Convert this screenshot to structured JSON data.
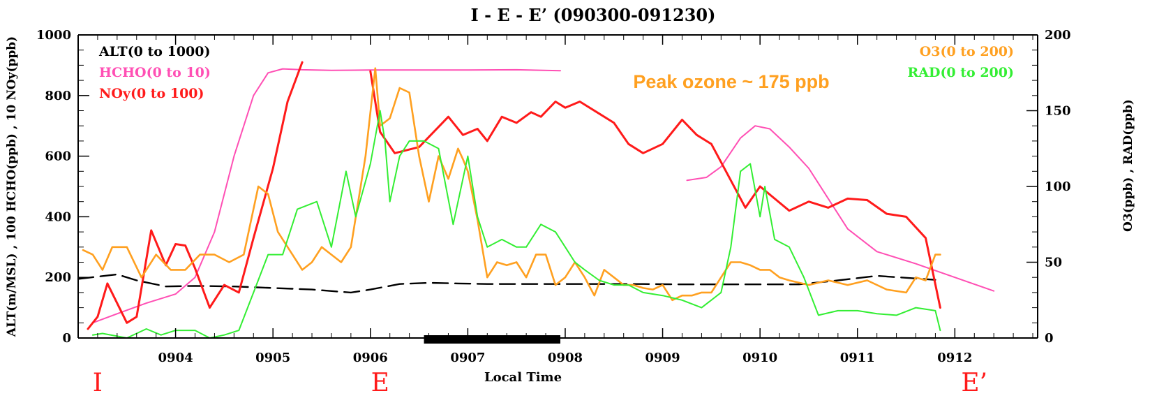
{
  "chart_data": {
    "type": "line",
    "title": "I - E - E’ (090300-091230)",
    "xlabel": "Local Time",
    "ylabel_left": "ALT(m/MSL) , 100 HCHO(ppb) , 10 NOy(ppb)",
    "ylabel_right": "O3(ppb) , RAD(ppb)",
    "xlim": [
      3.0,
      12.85
    ],
    "ylim_left": [
      0,
      1000
    ],
    "ylim_right": [
      0,
      200
    ],
    "x_ticks": [
      4,
      5,
      6,
      7,
      8,
      9,
      10,
      11,
      12
    ],
    "x_tick_labels": [
      "0904",
      "0905",
      "0906",
      "0907",
      "0908",
      "0909",
      "0910",
      "0911",
      "0912"
    ],
    "y_ticks_left": [
      0,
      200,
      400,
      600,
      800,
      1000
    ],
    "y_tick_labels_left": [
      "0",
      "200",
      "400",
      "600",
      "800",
      "1000"
    ],
    "y_ticks_right": [
      0,
      50,
      100,
      150,
      200
    ],
    "y_tick_labels_right": [
      "0",
      "50",
      "100",
      "150",
      "200"
    ],
    "grid": false,
    "legend_left": [
      {
        "label": "ALT(0 to 1000)",
        "color": "#000000"
      },
      {
        "label": "HCHO(0 to 10)",
        "color": "#ff4fb4"
      },
      {
        "label": "NOy(0 to 100)",
        "color": "#ff1a1a"
      }
    ],
    "legend_right": [
      {
        "label": "O3(0 to 200)",
        "color": "#ffa020"
      },
      {
        "label": "RAD(0 to 200)",
        "color": "#33ee33"
      }
    ],
    "annotation": {
      "text": "Peak ozone ~ 175 ppb",
      "color": "#ffa020"
    },
    "bar_segment": {
      "x_start": 6.55,
      "x_end": 7.95
    },
    "point_markers": [
      {
        "label": "I",
        "x": 3.2,
        "color": "#ff1a1a"
      },
      {
        "label": "E",
        "x": 6.1,
        "color": "#ff1a1a"
      },
      {
        "label": "E’",
        "x": 12.2,
        "color": "#ff1a1a"
      }
    ],
    "series": [
      {
        "name": "ALT",
        "axis": "left",
        "color": "#000000",
        "dashed": true,
        "x": [
          3.0,
          3.4,
          3.6,
          3.9,
          4.2,
          4.6,
          5.0,
          5.4,
          5.8,
          6.0,
          6.3,
          6.6,
          6.9,
          7.2,
          7.6,
          8.0,
          8.4,
          8.8,
          9.2,
          9.6,
          10.0,
          10.4,
          10.8,
          11.2,
          11.8
        ],
        "y": [
          195,
          210,
          190,
          170,
          172,
          170,
          165,
          160,
          150,
          160,
          178,
          182,
          180,
          178,
          178,
          178,
          178,
          178,
          177,
          177,
          177,
          177,
          190,
          205,
          192
        ]
      },
      {
        "name": "HCHO",
        "axis": "left",
        "color": "#ff4fb4",
        "dashed": false,
        "x": [
          3.15,
          3.4,
          3.7,
          4.0,
          4.2,
          4.4,
          4.6,
          4.8,
          4.95,
          5.1,
          5.3,
          5.6,
          6.0,
          6.5,
          7.0,
          7.5,
          7.95
        ],
        "y": [
          50,
          80,
          115,
          145,
          200,
          350,
          600,
          800,
          875,
          888,
          885,
          883,
          884,
          884,
          884,
          885,
          882
        ]
      },
      {
        "name": "HCHO-2",
        "axis": "left",
        "color": "#ff4fb4",
        "dashed": false,
        "x": [
          9.25,
          9.45,
          9.6,
          9.8,
          9.95,
          10.1,
          10.3,
          10.5,
          10.7,
          10.9,
          11.2,
          11.6,
          12.0,
          12.4
        ],
        "y": [
          520,
          530,
          565,
          660,
          700,
          690,
          630,
          560,
          460,
          360,
          285,
          245,
          200,
          155
        ]
      },
      {
        "name": "NOy",
        "axis": "left",
        "color": "#ff1a1a",
        "dashed": false,
        "x": [
          3.1,
          3.2,
          3.3,
          3.5,
          3.6,
          3.75,
          3.9,
          4.0,
          4.1,
          4.2,
          4.35,
          4.5,
          4.65,
          4.8,
          5.0,
          5.15,
          5.3
        ],
        "y": [
          30,
          70,
          180,
          50,
          70,
          355,
          240,
          310,
          305,
          230,
          100,
          175,
          150,
          330,
          560,
          780,
          910
        ]
      },
      {
        "name": "NOy-2",
        "axis": "left",
        "color": "#ff1a1a",
        "dashed": false,
        "x": [
          6.0,
          6.1,
          6.25,
          6.5,
          6.8,
          6.95,
          7.1,
          7.2,
          7.35,
          7.5,
          7.65,
          7.75,
          7.9,
          8.0,
          8.15,
          8.35,
          8.5,
          8.65,
          8.8,
          9.0,
          9.2,
          9.35,
          9.5,
          9.7,
          9.85,
          10.0,
          10.15,
          10.3,
          10.5,
          10.7,
          10.9,
          11.1,
          11.3,
          11.5,
          11.7,
          11.85
        ],
        "y": [
          880,
          680,
          610,
          630,
          730,
          670,
          690,
          650,
          730,
          710,
          745,
          730,
          780,
          760,
          780,
          740,
          710,
          640,
          610,
          640,
          720,
          670,
          640,
          520,
          430,
          500,
          460,
          420,
          450,
          430,
          460,
          455,
          410,
          400,
          330,
          100
        ]
      },
      {
        "name": "O3",
        "axis": "right",
        "color": "#ffa020",
        "dashed": false,
        "x": [
          3.05,
          3.15,
          3.25,
          3.35,
          3.5,
          3.65,
          3.8,
          3.95,
          4.1,
          4.25,
          4.4,
          4.55,
          4.7,
          4.85,
          4.95,
          5.05,
          5.2,
          5.3,
          5.4,
          5.5,
          5.6,
          5.7,
          5.8,
          5.95,
          6.05,
          6.1,
          6.2,
          6.3,
          6.4,
          6.5,
          6.6,
          6.7,
          6.8,
          6.9,
          6.95,
          7.0,
          7.1,
          7.2,
          7.3,
          7.4,
          7.5,
          7.6,
          7.7,
          7.8,
          7.9,
          8.0,
          8.1,
          8.2,
          8.3,
          8.4,
          8.5,
          8.6,
          8.7,
          8.8,
          8.9,
          9.0,
          9.1,
          9.2,
          9.3,
          9.4,
          9.5,
          9.6,
          9.7,
          9.8,
          9.9,
          10.0,
          10.1,
          10.2,
          10.3,
          10.5,
          10.7,
          10.9,
          11.1,
          11.3,
          11.5,
          11.6,
          11.7,
          11.8,
          11.85
        ],
        "y": [
          58,
          55,
          45,
          60,
          60,
          40,
          55,
          45,
          45,
          55,
          55,
          50,
          55,
          100,
          95,
          70,
          55,
          45,
          50,
          60,
          55,
          50,
          60,
          120,
          178,
          140,
          145,
          165,
          162,
          120,
          90,
          120,
          105,
          125,
          118,
          110,
          78,
          40,
          50,
          48,
          50,
          40,
          55,
          55,
          35,
          40,
          50,
          40,
          28,
          45,
          40,
          35,
          35,
          33,
          32,
          35,
          25,
          28,
          28,
          30,
          30,
          40,
          50,
          50,
          48,
          45,
          45,
          40,
          38,
          35,
          38,
          35,
          38,
          32,
          30,
          40,
          38,
          55,
          55
        ]
      },
      {
        "name": "RAD",
        "axis": "right",
        "color": "#33ee33",
        "dashed": false,
        "x": [
          3.15,
          3.25,
          3.5,
          3.7,
          3.85,
          4.0,
          4.2,
          4.35,
          4.5,
          4.65,
          4.8,
          4.95,
          5.1,
          5.25,
          5.45,
          5.6,
          5.75,
          5.85,
          6.0,
          6.1,
          6.15,
          6.2,
          6.3,
          6.4,
          6.55,
          6.7,
          6.85,
          7.0,
          7.1,
          7.2,
          7.35,
          7.5,
          7.6,
          7.75,
          7.9,
          8.0,
          8.1,
          8.2,
          8.35,
          8.5,
          8.65,
          8.8,
          9.0,
          9.2,
          9.4,
          9.6,
          9.7,
          9.8,
          9.9,
          10.0,
          10.05,
          10.15,
          10.3,
          10.45,
          10.6,
          10.8,
          11.0,
          11.2,
          11.4,
          11.6,
          11.8,
          11.85
        ],
        "y": [
          2,
          3,
          0,
          6,
          2,
          5,
          5,
          0,
          2,
          5,
          30,
          55,
          55,
          85,
          90,
          60,
          110,
          80,
          115,
          150,
          130,
          90,
          120,
          130,
          130,
          125,
          75,
          120,
          80,
          60,
          65,
          60,
          60,
          75,
          70,
          60,
          50,
          45,
          38,
          35,
          35,
          30,
          28,
          25,
          20,
          30,
          60,
          110,
          115,
          80,
          100,
          65,
          60,
          40,
          15,
          18,
          18,
          16,
          15,
          20,
          18,
          5
        ]
      }
    ]
  }
}
